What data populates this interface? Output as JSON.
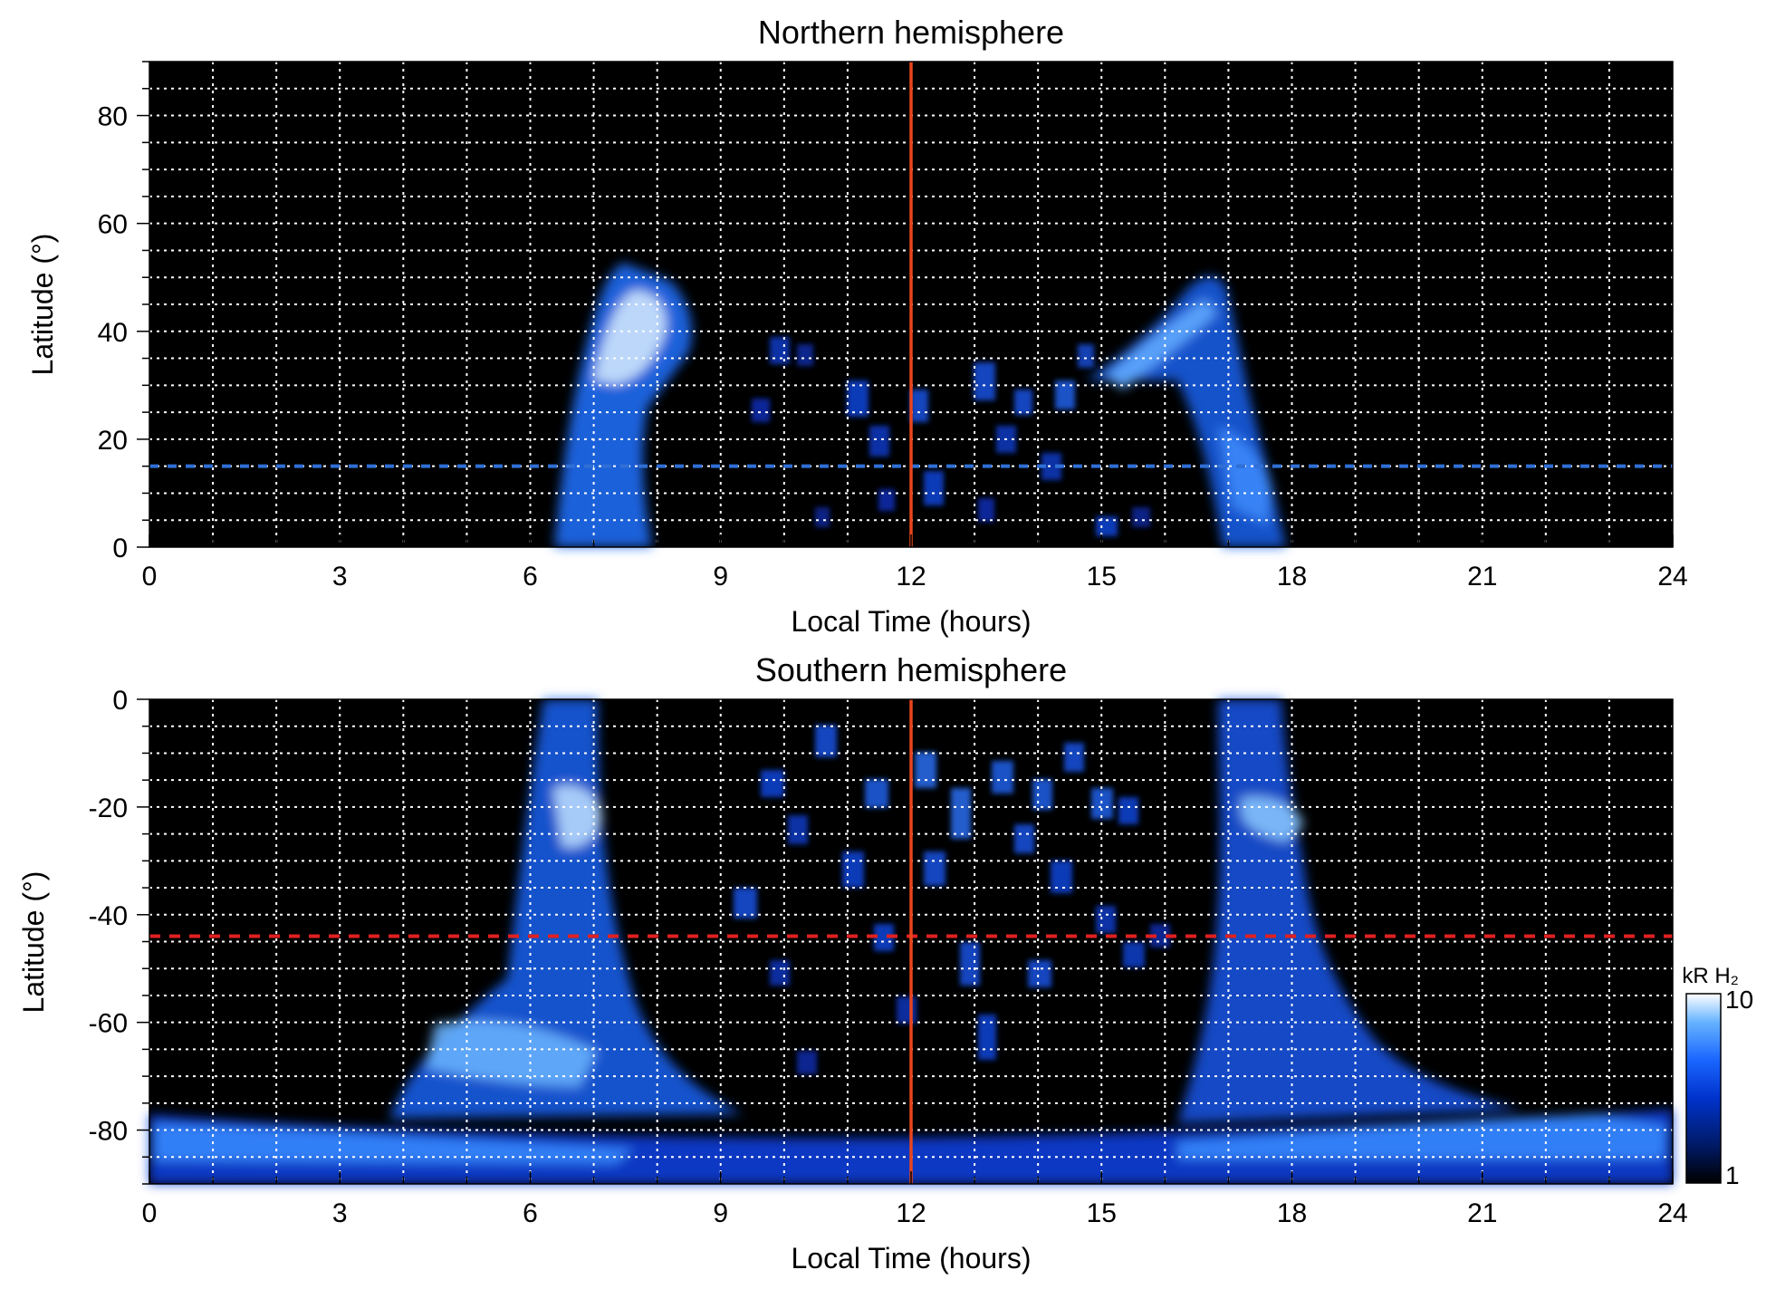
{
  "chart_data": [
    {
      "type": "heatmap",
      "title": "Northern hemisphere",
      "xlabel": "Local Time (hours)",
      "ylabel": "Latitude (°)",
      "xlim": [
        0,
        24
      ],
      "ylim": [
        0,
        90
      ],
      "x_ticks": [
        "0",
        "3",
        "6",
        "9",
        "12",
        "15",
        "18",
        "21",
        "24"
      ],
      "y_ticks": [
        "0",
        "20",
        "40",
        "60",
        "80"
      ],
      "grid": true,
      "background": "#000000",
      "noon_line": {
        "x": 12,
        "color": "#e8451e"
      },
      "reference_latitude": {
        "y": 15,
        "color": "#2f6fd6",
        "style": "dashed"
      },
      "emission_regions": [
        {
          "label": "dawn arc",
          "x": [
            6.5,
            8.8
          ],
          "y": [
            0,
            52
          ],
          "peak_kR": 10
        },
        {
          "label": "dusk arc",
          "x": [
            15.8,
            17.9
          ],
          "y": [
            0,
            49
          ],
          "peak_kR": 6
        },
        {
          "label": "midday patches",
          "x": [
            9.3,
            15.5
          ],
          "y": [
            0,
            38
          ],
          "peak_kR": 4
        }
      ]
    },
    {
      "type": "heatmap",
      "title": "Southern hemisphere",
      "xlabel": "Local Time (hours)",
      "ylabel": "Latitude (°)",
      "xlim": [
        0,
        24
      ],
      "ylim": [
        -90,
        0
      ],
      "x_ticks": [
        "0",
        "3",
        "6",
        "9",
        "12",
        "15",
        "18",
        "21",
        "24"
      ],
      "y_ticks": [
        "0",
        "-20",
        "-40",
        "-60",
        "-80"
      ],
      "grid": true,
      "background": "#000000",
      "noon_line": {
        "x": 12,
        "color": "#e8451e"
      },
      "reference_latitude": {
        "y": -44,
        "color": "#e02020",
        "style": "dashed"
      },
      "emission_regions": [
        {
          "label": "dawn arc",
          "x": [
            5.8,
            7.6
          ],
          "y": [
            -80,
            0
          ],
          "peak_kR": 10
        },
        {
          "label": "dusk arc",
          "x": [
            16.8,
            18.6
          ],
          "y": [
            -72,
            0
          ],
          "peak_kR": 7
        },
        {
          "label": "midday patches",
          "x": [
            9,
            16
          ],
          "y": [
            -65,
            0
          ],
          "peak_kR": 4
        },
        {
          "label": "polar band",
          "x": [
            0,
            24
          ],
          "y": [
            -90,
            -76
          ],
          "peak_kR": 8
        }
      ],
      "colorbar": {
        "label": "kR H₂",
        "scale": "log",
        "min": 1,
        "max": 10,
        "tick_labels": [
          "10",
          "1"
        ],
        "colors": [
          "#000000",
          "#001a66",
          "#0033cc",
          "#1a66ff",
          "#66b3ff",
          "#ffffff"
        ]
      }
    }
  ]
}
